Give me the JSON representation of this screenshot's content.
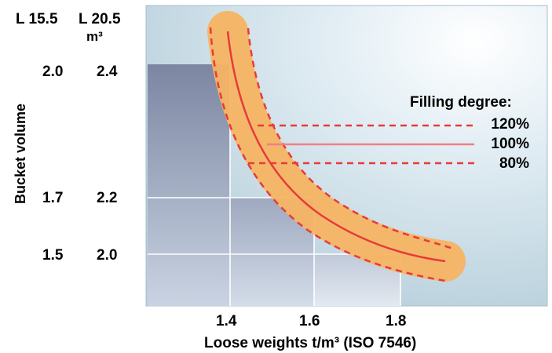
{
  "chart_data": {
    "type": "line",
    "title": "",
    "xlabel": "Loose weights t/m³ (ISO 7546)",
    "ylabel": "Bucket volume",
    "x_ticks": [
      "1.4",
      "1.6",
      "1.8"
    ],
    "y_axis_headers": [
      "L 15.5",
      "L 20.5"
    ],
    "y_unit": "m³",
    "y_ticks": [
      {
        "l155": "2.0",
        "l205": "2.4"
      },
      {
        "l155": "1.7",
        "l205": "2.2"
      },
      {
        "l155": "1.5",
        "l205": "2.0"
      }
    ],
    "legend_title": "Filling degree:",
    "series": [
      {
        "name": "120%",
        "style": "dashed",
        "x": [
          1.4,
          1.5,
          1.6,
          1.7,
          1.8,
          1.9
        ]
      },
      {
        "name": "100%",
        "style": "solid",
        "x": [
          1.4,
          1.5,
          1.6,
          1.7,
          1.8,
          1.9
        ]
      },
      {
        "name": "80%",
        "style": "dashed",
        "x": [
          1.4,
          1.5,
          1.6,
          1.7,
          1.8,
          1.9
        ]
      }
    ],
    "grid": true,
    "colors": {
      "curve": "#e83a3a",
      "band": "#f7b865",
      "background_light": "#eef5f8",
      "background_dark": "#7f8aa6"
    }
  }
}
